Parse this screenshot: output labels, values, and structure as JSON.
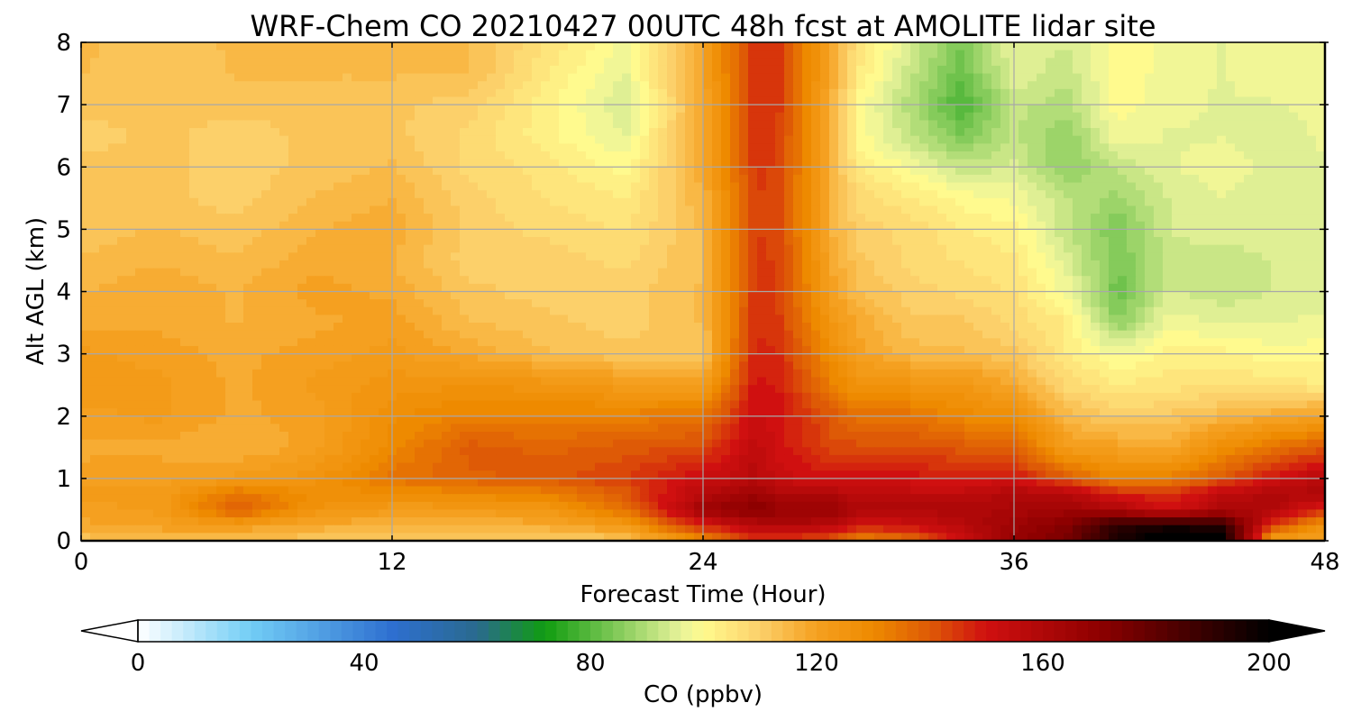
{
  "chart_data": {
    "type": "heatmap",
    "title": "WRF-Chem CO  20210427 00UTC 48h fcst at AMOLITE lidar site",
    "xlabel": "Forecast Time (Hour)",
    "ylabel": "Alt AGL (km)",
    "xlim": [
      0,
      48
    ],
    "ylim": [
      0,
      8
    ],
    "xticks": [
      0,
      12,
      24,
      36,
      48
    ],
    "yticks": [
      0,
      1,
      2,
      3,
      4,
      5,
      6,
      7,
      8
    ],
    "grid": true,
    "x": [
      0,
      3,
      6,
      9,
      12,
      15,
      18,
      21,
      24,
      26,
      27,
      29,
      30,
      32,
      34,
      36,
      38,
      40,
      42,
      44,
      46,
      48
    ],
    "y": [
      0,
      0.25,
      0.5,
      0.75,
      1,
      1.5,
      2,
      2.5,
      3,
      3.5,
      4,
      4.5,
      5,
      5.5,
      6,
      6.5,
      7,
      7.5,
      8
    ],
    "z": [
      [
        112,
        115,
        112,
        112,
        110,
        110,
        110,
        111,
        128,
        144,
        144,
        138,
        130,
        135,
        152,
        168,
        175,
        195,
        205,
        205,
        120,
        120
      ],
      [
        118,
        120,
        122,
        118,
        116,
        116,
        118,
        124,
        148,
        158,
        160,
        158,
        150,
        152,
        158,
        165,
        172,
        190,
        195,
        190,
        145,
        125
      ],
      [
        120,
        122,
        140,
        126,
        122,
        122,
        124,
        135,
        165,
        172,
        168,
        168,
        160,
        160,
        160,
        162,
        165,
        160,
        150,
        160,
        160,
        145
      ],
      [
        122,
        122,
        135,
        128,
        128,
        130,
        132,
        140,
        158,
        165,
        160,
        160,
        155,
        155,
        155,
        160,
        158,
        148,
        145,
        155,
        160,
        160
      ],
      [
        120,
        120,
        122,
        125,
        135,
        138,
        140,
        144,
        152,
        158,
        152,
        150,
        150,
        150,
        148,
        150,
        140,
        130,
        132,
        140,
        150,
        158
      ],
      [
        118,
        118,
        116,
        120,
        130,
        140,
        138,
        140,
        142,
        155,
        150,
        142,
        142,
        142,
        140,
        138,
        122,
        120,
        118,
        128,
        135,
        140
      ],
      [
        120,
        122,
        118,
        120,
        128,
        132,
        132,
        132,
        135,
        152,
        150,
        140,
        135,
        135,
        130,
        128,
        115,
        110,
        112,
        115,
        118,
        120
      ],
      [
        124,
        122,
        118,
        122,
        125,
        126,
        125,
        122,
        120,
        150,
        148,
        132,
        126,
        125,
        124,
        118,
        108,
        104,
        105,
        106,
        105,
        104
      ],
      [
        122,
        120,
        118,
        120,
        122,
        118,
        114,
        112,
        112,
        148,
        146,
        128,
        120,
        115,
        114,
        112,
        104,
        98,
        102,
        102,
        100,
        100
      ],
      [
        118,
        118,
        116,
        118,
        120,
        114,
        112,
        110,
        114,
        146,
        144,
        124,
        118,
        112,
        112,
        108,
        104,
        86,
        98,
        96,
        96,
        97
      ],
      [
        116,
        118,
        116,
        120,
        118,
        112,
        110,
        110,
        114,
        145,
        143,
        120,
        114,
        110,
        108,
        106,
        98,
        82,
        94,
        92,
        94,
        95
      ],
      [
        114,
        116,
        114,
        118,
        116,
        110,
        110,
        108,
        114,
        145,
        143,
        118,
        112,
        108,
        106,
        104,
        95,
        84,
        92,
        92,
        94,
        95
      ],
      [
        112,
        114,
        112,
        116,
        118,
        110,
        108,
        106,
        114,
        144,
        142,
        116,
        110,
        108,
        104,
        102,
        92,
        84,
        94,
        96,
        94,
        94
      ],
      [
        112,
        112,
        110,
        114,
        116,
        110,
        106,
        104,
        116,
        144,
        142,
        116,
        108,
        104,
        100,
        98,
        92,
        88,
        94,
        96,
        94,
        94
      ],
      [
        112,
        112,
        110,
        112,
        114,
        108,
        105,
        100,
        118,
        145,
        143,
        115,
        104,
        98,
        92,
        94,
        86,
        92,
        96,
        98,
        95,
        96
      ],
      [
        110,
        112,
        110,
        112,
        112,
        108,
        102,
        96,
        118,
        145,
        143,
        115,
        100,
        92,
        84,
        92,
        86,
        98,
        96,
        96,
        94,
        97
      ],
      [
        112,
        112,
        112,
        112,
        112,
        110,
        102,
        94,
        118,
        146,
        144,
        116,
        100,
        90,
        78,
        92,
        90,
        100,
        97,
        96,
        96,
        98
      ],
      [
        114,
        112,
        114,
        114,
        114,
        114,
        104,
        96,
        120,
        146,
        144,
        118,
        104,
        92,
        82,
        96,
        92,
        100,
        98,
        96,
        98,
        98
      ],
      [
        114,
        113,
        114,
        114,
        114,
        114,
        106,
        98,
        120,
        146,
        144,
        118,
        106,
        94,
        84,
        96,
        94,
        100,
        98,
        96,
        98,
        98
      ]
    ],
    "colorbar": {
      "label": "CO  (ppbv)",
      "min": 0,
      "max": 200,
      "ticks": [
        0,
        40,
        80,
        120,
        160,
        200
      ],
      "extend": "both",
      "stops": [
        {
          "v": 0,
          "c": "#ffffff"
        },
        {
          "v": 20,
          "c": "#72cdf5"
        },
        {
          "v": 45,
          "c": "#2e6fd0"
        },
        {
          "v": 60,
          "c": "#2a6a8e"
        },
        {
          "v": 72,
          "c": "#109c10"
        },
        {
          "v": 96,
          "c": "#e8f39a"
        },
        {
          "v": 100,
          "c": "#fffa8e"
        },
        {
          "v": 110,
          "c": "#fcd06a"
        },
        {
          "v": 120,
          "c": "#f5a020"
        },
        {
          "v": 130,
          "c": "#ee8a00"
        },
        {
          "v": 140,
          "c": "#de5a06"
        },
        {
          "v": 150,
          "c": "#d01010"
        },
        {
          "v": 170,
          "c": "#8e0000"
        },
        {
          "v": 200,
          "c": "#000000"
        }
      ]
    }
  }
}
